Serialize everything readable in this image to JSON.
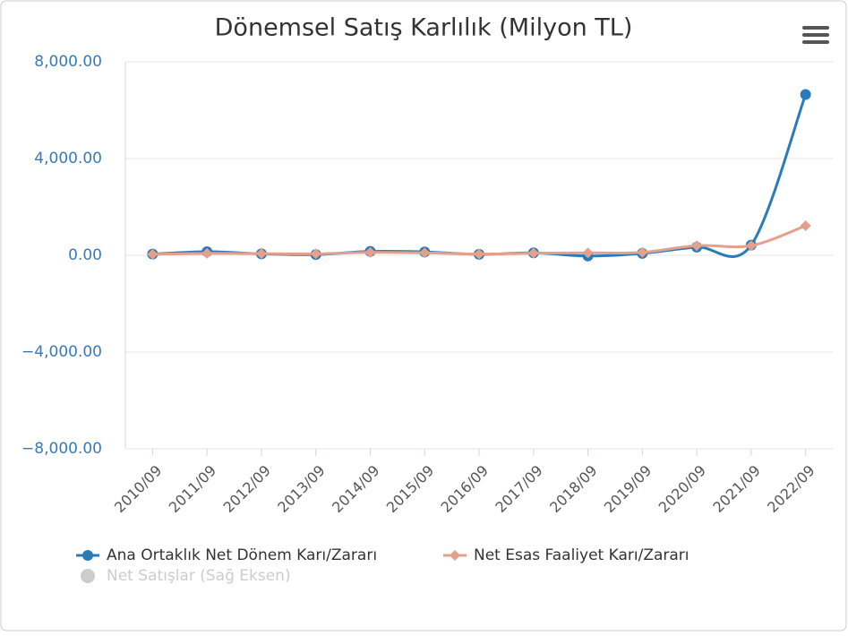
{
  "chart_data": {
    "type": "line",
    "title": "Dönemsel Satış Karlılık (Milyon TL)",
    "categories": [
      "2010/09",
      "2011/09",
      "2012/09",
      "2013/09",
      "2014/09",
      "2015/09",
      "2016/09",
      "2017/09",
      "2018/09",
      "2019/09",
      "2020/09",
      "2021/09",
      "2022/09"
    ],
    "series": [
      {
        "name": "Ana Ortaklık Net Dönem Karı/Zararı",
        "color": "#2b7bba",
        "marker": "circle",
        "values": [
          50,
          150,
          60,
          30,
          160,
          140,
          40,
          100,
          -30,
          80,
          340,
          420,
          6650
        ]
      },
      {
        "name": "Net Esas Faaliyet Karı/Zararı",
        "color": "#e5a08b",
        "marker": "diamond",
        "values": [
          40,
          80,
          70,
          60,
          120,
          100,
          50,
          90,
          100,
          120,
          400,
          400,
          1220
        ]
      },
      {
        "name": "Net Satışlar (Sağ Eksen)",
        "color": "#cccccc",
        "visible": false
      }
    ],
    "ylim": [
      -8000,
      8000
    ],
    "yticks": [
      {
        "value": -8000,
        "label": "−8,000.00"
      },
      {
        "value": -4000,
        "label": "−4,000.00"
      },
      {
        "value": 0,
        "label": "0.00"
      },
      {
        "value": 4000,
        "label": "4,000.00"
      },
      {
        "value": 8000,
        "label": "8,000.00"
      }
    ],
    "grid": true
  }
}
